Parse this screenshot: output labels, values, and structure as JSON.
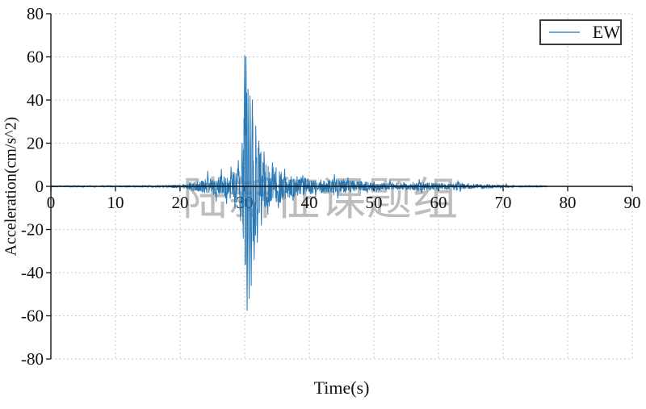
{
  "chart_data": {
    "type": "line",
    "title": "",
    "xlabel": "Time(s)",
    "ylabel": "Acceleration(cm/s^2)",
    "xlim": [
      0,
      90
    ],
    "ylim": [
      -80,
      80
    ],
    "xticks": [
      0,
      10,
      20,
      30,
      40,
      50,
      60,
      70,
      80,
      90
    ],
    "yticks": [
      80,
      60,
      40,
      20,
      0,
      -20,
      -40,
      -60,
      -80
    ],
    "grid": {
      "style": "dashed",
      "color": "#c9c9c9",
      "on": true
    },
    "axis_color": "#111111",
    "legend": {
      "position": "upper-right",
      "entries": [
        "EW"
      ]
    },
    "series": [
      {
        "name": "EW",
        "color": "#2878b5"
      }
    ],
    "watermark": "陆新征课题组",
    "watermark_color": "#bdbdbd",
    "signal": {
      "description": "EW ground acceleration record; quiet until ~20 s, pre-shock noise grows to ~±9 cm/s^2 by 29 s, main shock at ~30 s with peaks +60.5 and -57.5 cm/s^2, coda decays to ~±0.4 cm/s^2, record ends at 77 s",
      "peak_acceleration": 60.5,
      "min_acceleration": -57.5,
      "end_time_s": 77,
      "envelope": [
        [
          0,
          0.35
        ],
        [
          12,
          0.4
        ],
        [
          18,
          0.5
        ],
        [
          20,
          0.8
        ],
        [
          21,
          1.3
        ],
        [
          22,
          2.2
        ],
        [
          23,
          2.6
        ],
        [
          24,
          3.2
        ],
        [
          25,
          3.8
        ],
        [
          26,
          4.5
        ],
        [
          27,
          5.5
        ],
        [
          28,
          7
        ],
        [
          28.7,
          9
        ],
        [
          29.2,
          13
        ],
        [
          29.6,
          22
        ],
        [
          29.9,
          42
        ],
        [
          30.3,
          46
        ],
        [
          30.7,
          44
        ],
        [
          31.1,
          38
        ],
        [
          31.5,
          28
        ],
        [
          31.9,
          22
        ],
        [
          32.4,
          17
        ],
        [
          32.9,
          13
        ],
        [
          33.5,
          11
        ],
        [
          34.2,
          9
        ],
        [
          35,
          8.5
        ],
        [
          36,
          7
        ],
        [
          37,
          5.5
        ],
        [
          38,
          4.8
        ],
        [
          39,
          4.2
        ],
        [
          40,
          3.6
        ],
        [
          41,
          3.2
        ],
        [
          42,
          3.1
        ],
        [
          43,
          3.4
        ],
        [
          44,
          4.6
        ],
        [
          44.7,
          3.6
        ],
        [
          45.5,
          3
        ],
        [
          46.5,
          2.7
        ],
        [
          48,
          2.4
        ],
        [
          50,
          2.1
        ],
        [
          52,
          1.9
        ],
        [
          54,
          1.7
        ],
        [
          56,
          1.9
        ],
        [
          57,
          2.3
        ],
        [
          58,
          1.7
        ],
        [
          60,
          1.4
        ],
        [
          62,
          1.5
        ],
        [
          63,
          1.9
        ],
        [
          64,
          1.3
        ],
        [
          66,
          1.1
        ],
        [
          68,
          0.95
        ],
        [
          70,
          0.75
        ],
        [
          71,
          0.55
        ],
        [
          73,
          0.45
        ],
        [
          75,
          0.4
        ],
        [
          77,
          0.35
        ]
      ],
      "peaks": [
        [
          24.3,
          7
        ],
        [
          25.6,
          -7
        ],
        [
          26.4,
          8
        ],
        [
          27.2,
          -8
        ],
        [
          27.9,
          9
        ],
        [
          28.5,
          -10
        ],
        [
          29.0,
          12
        ],
        [
          29.35,
          -16
        ],
        [
          29.6,
          20
        ],
        [
          29.8,
          -24
        ],
        [
          29.98,
          60.5
        ],
        [
          30.12,
          -36
        ],
        [
          30.22,
          60
        ],
        [
          30.38,
          -57.5
        ],
        [
          30.52,
          45
        ],
        [
          30.68,
          -52
        ],
        [
          30.85,
          42
        ],
        [
          31.02,
          -46
        ],
        [
          31.2,
          40
        ],
        [
          31.45,
          -34
        ],
        [
          31.7,
          28
        ],
        [
          31.95,
          -26
        ],
        [
          32.2,
          21
        ],
        [
          32.6,
          -18
        ],
        [
          33.0,
          16
        ],
        [
          33.6,
          -13
        ],
        [
          34.3,
          11
        ],
        [
          35.2,
          -10
        ],
        [
          36.2,
          8
        ],
        [
          37.5,
          -6.5
        ],
        [
          39,
          5
        ],
        [
          41,
          -4.5
        ],
        [
          43.9,
          5.5
        ],
        [
          44.4,
          -5.5
        ],
        [
          46,
          4
        ],
        [
          49,
          -3
        ],
        [
          52.5,
          2.8
        ],
        [
          57,
          3.2
        ],
        [
          57.4,
          -3
        ],
        [
          63,
          2.6
        ],
        [
          63.4,
          -2.4
        ],
        [
          70.5,
          1.2
        ]
      ]
    }
  }
}
